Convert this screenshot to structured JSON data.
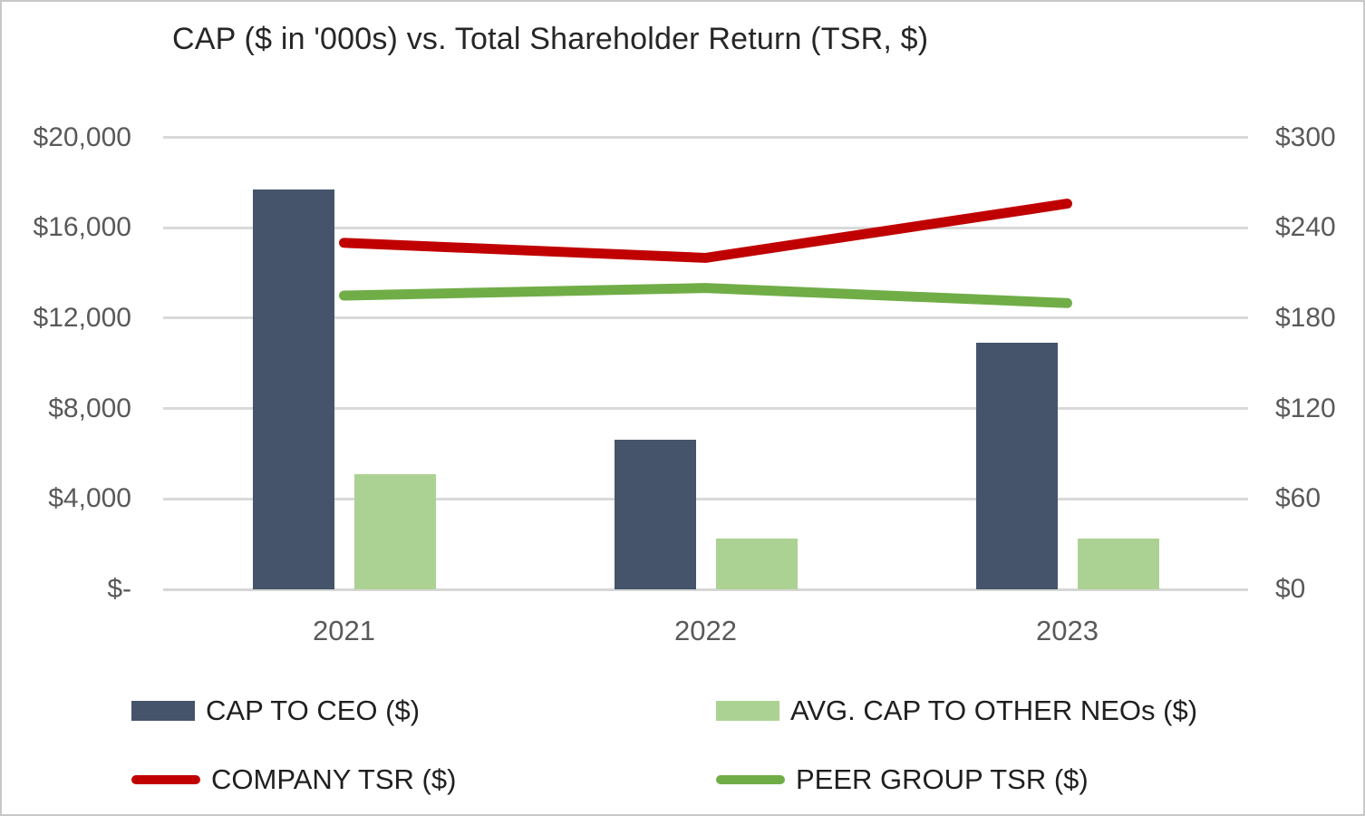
{
  "title": "CAP ($ in '000s) vs. Total Shareholder Return (TSR, $)",
  "chart_data": {
    "type": "bar",
    "subtype": "combo-bar-line-dual-axis",
    "title": "CAP ($ in '000s) vs. Total Shareholder Return (TSR, $)",
    "categories": [
      "2021",
      "2022",
      "2023"
    ],
    "series": [
      {
        "name": "CAP TO CEO ($)",
        "type": "bar",
        "axis": "left",
        "color": "#45546B",
        "values": [
          17700,
          6600,
          10900
        ]
      },
      {
        "name": "AVG. CAP TO OTHER NEOs ($)",
        "type": "bar",
        "axis": "left",
        "color": "#ABD292",
        "values": [
          5100,
          2250,
          2250
        ]
      },
      {
        "name": "COMPANY TSR ($)",
        "type": "line",
        "axis": "right",
        "color": "#C00000",
        "values": [
          230,
          220,
          256
        ]
      },
      {
        "name": "PEER GROUP TSR ($)",
        "type": "line",
        "axis": "right",
        "color": "#70AD47",
        "values": [
          195,
          200,
          190
        ]
      }
    ],
    "left_axis": {
      "tick_labels": [
        "$20,000",
        "$16,000",
        "$12,000",
        "$8,000",
        "$4,000",
        "$-"
      ],
      "tick_values": [
        20000,
        16000,
        12000,
        8000,
        4000,
        0
      ],
      "ylim": [
        0,
        20000
      ]
    },
    "right_axis": {
      "tick_labels": [
        "$300",
        "$240",
        "$180",
        "$120",
        "$60",
        "$0"
      ],
      "tick_values": [
        300,
        240,
        180,
        120,
        60,
        0
      ],
      "ylim": [
        0,
        300
      ]
    },
    "grid": true,
    "legend_position": "bottom",
    "colors": {
      "gridline": "#D9D9D9",
      "axis_text": "#595959",
      "title_text": "#262626",
      "legend_text": "#1F1F1F"
    }
  }
}
